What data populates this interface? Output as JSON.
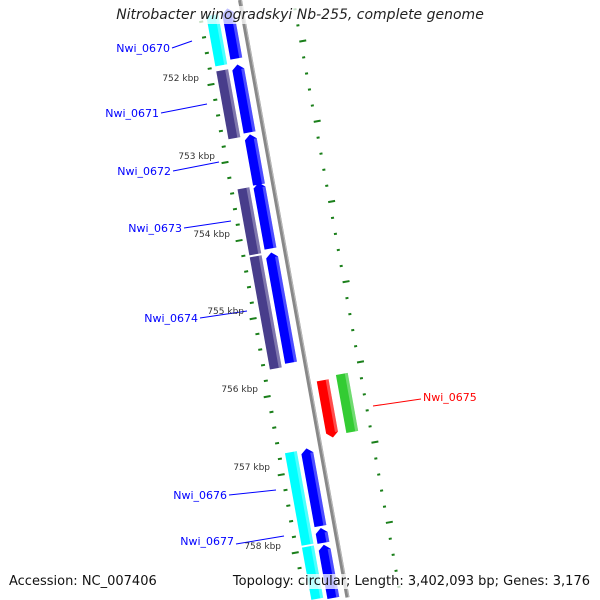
{
  "title": "Nitrobacter winogradskyi Nb-255, complete genome",
  "footer": {
    "accession": "Accession: NC_007406",
    "summary": "Topology: circular; Length: 3,402,093 bp; Genes: 3,176"
  },
  "colors": {
    "forward_cds": "#0000ff",
    "track_slate": "#483d8b",
    "track_cyan": "#00ffff",
    "reverse_cds": "#ff0000",
    "reverse_track": "#33cc33",
    "ticks": "#1a7f1a",
    "backbone": "#888888",
    "label_blue": "#0000ff",
    "label_red": "#ff0000"
  },
  "genes": [
    {
      "name": "Nwi_0670",
      "strand": "forward"
    },
    {
      "name": "Nwi_0671",
      "strand": "forward"
    },
    {
      "name": "Nwi_0672",
      "strand": "forward"
    },
    {
      "name": "Nwi_0673",
      "strand": "forward"
    },
    {
      "name": "Nwi_0674",
      "strand": "forward"
    },
    {
      "name": "Nwi_0675",
      "strand": "reverse"
    },
    {
      "name": "Nwi_0676",
      "strand": "forward"
    },
    {
      "name": "Nwi_0677",
      "strand": "forward"
    }
  ],
  "ruler": [
    "752 kbp",
    "753 kbp",
    "754 kbp",
    "755 kbp",
    "756 kbp",
    "757 kbp",
    "758 kbp"
  ]
}
